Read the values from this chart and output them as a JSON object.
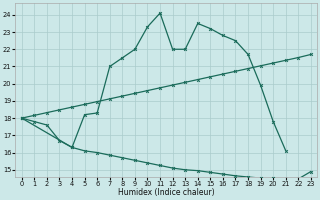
{
  "xlabel": "Humidex (Indice chaleur)",
  "bg_color": "#cce8e8",
  "grid_color": "#aacccc",
  "line_color": "#1a6b5a",
  "xlim": [
    -0.5,
    23.5
  ],
  "ylim": [
    14.6,
    24.7
  ],
  "xtick_vals": [
    0,
    1,
    2,
    3,
    4,
    5,
    6,
    7,
    8,
    9,
    10,
    11,
    12,
    13,
    14,
    15,
    16,
    17,
    18,
    19,
    20,
    21,
    22,
    23
  ],
  "ytick_vals": [
    15,
    16,
    17,
    18,
    19,
    20,
    21,
    22,
    23,
    24
  ],
  "line1_x": [
    0,
    1,
    2,
    3,
    4,
    5,
    6,
    7,
    8,
    9,
    10,
    11,
    12,
    13,
    14,
    15,
    16,
    17,
    18,
    19,
    20,
    21
  ],
  "line1_y": [
    18.0,
    17.8,
    17.6,
    16.7,
    16.3,
    18.2,
    18.3,
    21.0,
    21.5,
    22.0,
    23.3,
    24.1,
    22.0,
    22.0,
    23.5,
    23.2,
    22.8,
    22.5,
    21.7,
    19.9,
    17.8,
    16.1
  ],
  "line2_x": [
    0,
    4,
    5,
    6,
    7,
    8,
    9,
    10,
    11,
    12,
    13,
    14,
    15,
    16,
    17,
    18,
    19,
    20,
    21,
    22,
    23
  ],
  "line2_y": [
    18.0,
    16.3,
    16.1,
    16.0,
    15.85,
    15.7,
    15.55,
    15.4,
    15.25,
    15.1,
    15.0,
    14.95,
    14.85,
    14.75,
    14.65,
    14.58,
    14.52,
    14.5,
    14.48,
    14.47,
    14.9
  ],
  "line3_x": [
    0,
    1,
    2,
    3,
    4,
    5,
    6,
    7,
    8,
    9,
    10,
    11,
    12,
    13,
    14,
    15,
    16,
    17,
    18,
    19,
    20,
    21,
    22,
    23
  ],
  "line3_y": [
    18.0,
    18.16,
    18.32,
    18.48,
    18.64,
    18.8,
    18.96,
    19.12,
    19.28,
    19.44,
    19.6,
    19.76,
    19.92,
    20.08,
    20.24,
    20.4,
    20.56,
    20.72,
    20.88,
    21.04,
    21.2,
    21.36,
    21.52,
    21.7
  ],
  "lw": 0.9,
  "ms": 2.0,
  "mew": 0.7,
  "xlabel_fontsize": 5.5,
  "tick_fontsize": 4.8
}
